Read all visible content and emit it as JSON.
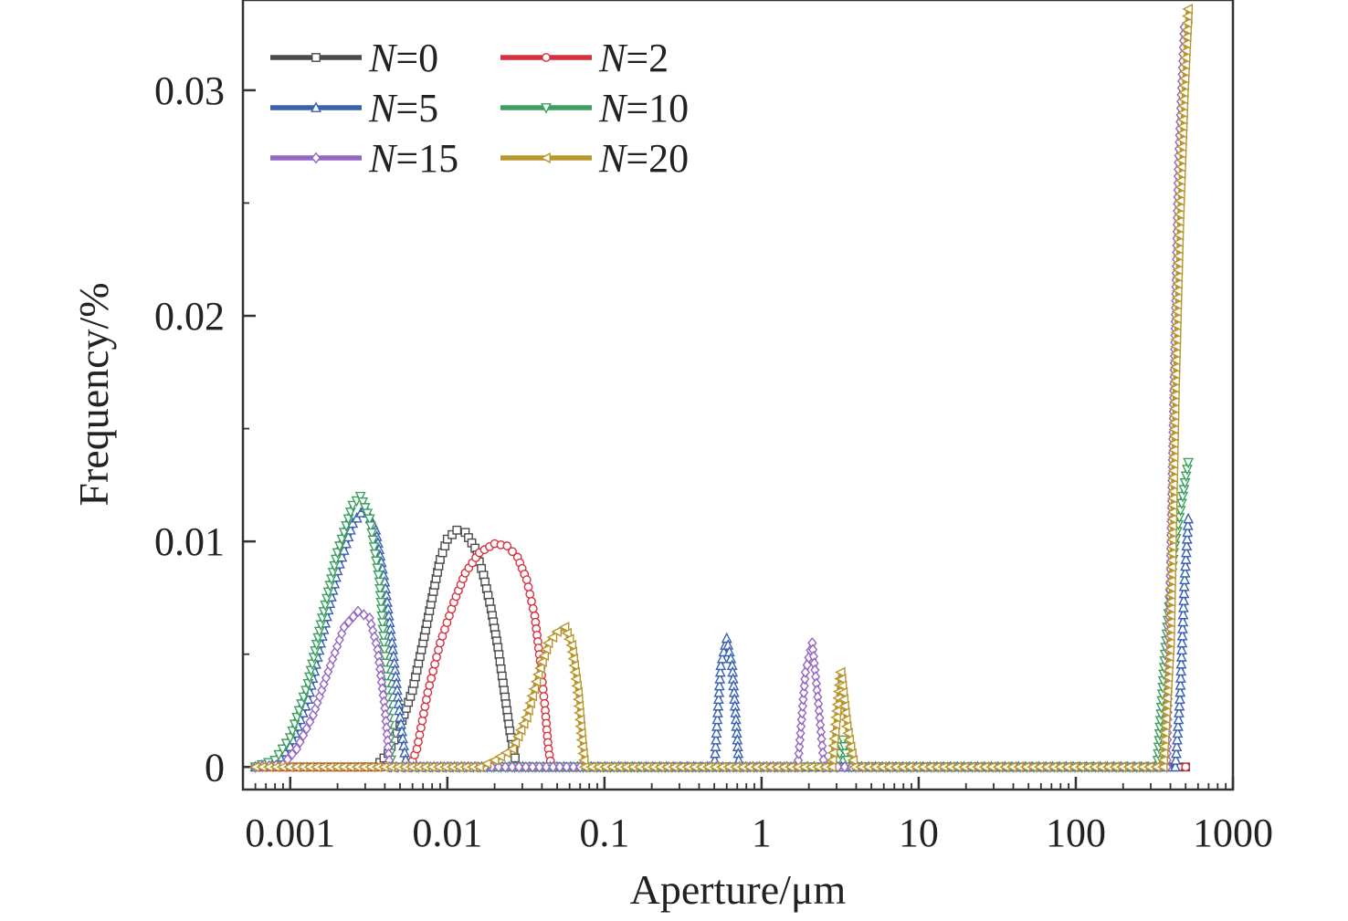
{
  "chart_data": {
    "type": "line",
    "title": "",
    "xlabel": "Aperture/μm",
    "ylabel": "Frequency/%",
    "xscale": "log",
    "xlim": [
      0.0005,
      1000
    ],
    "ylim": [
      -0.001,
      0.034
    ],
    "xticks": [
      0.001,
      0.01,
      0.1,
      1,
      10,
      100,
      1000
    ],
    "xtick_labels": [
      "0.001",
      "0.01",
      "0.1",
      "1",
      "10",
      "100",
      "1000"
    ],
    "yticks": [
      0,
      0.01,
      0.02,
      0.03
    ],
    "ytick_labels": [
      "0",
      "0.01",
      "0.02",
      "0.03"
    ],
    "legend_position": "top-left",
    "series": [
      {
        "name": "N=0",
        "var": "N",
        "value_label": "=0",
        "color": "#4a4a4a",
        "marker": "square",
        "points": [
          [
            0.0006,
            0
          ],
          [
            0.0035,
            0
          ],
          [
            0.0042,
            0.0006
          ],
          [
            0.005,
            0.0018
          ],
          [
            0.006,
            0.0034
          ],
          [
            0.007,
            0.0055
          ],
          [
            0.008,
            0.0075
          ],
          [
            0.009,
            0.0092
          ],
          [
            0.01,
            0.0101
          ],
          [
            0.0115,
            0.0105
          ],
          [
            0.013,
            0.0104
          ],
          [
            0.015,
            0.0097
          ],
          [
            0.017,
            0.0085
          ],
          [
            0.019,
            0.007
          ],
          [
            0.021,
            0.0053
          ],
          [
            0.023,
            0.0034
          ],
          [
            0.025,
            0.0016
          ],
          [
            0.027,
            0.0004
          ],
          [
            0.029,
            0
          ],
          [
            500,
            0
          ]
        ]
      },
      {
        "name": "N=2",
        "var": "N",
        "value_label": "=2",
        "color": "#d6303f",
        "marker": "circle",
        "points": [
          [
            0.0006,
            0
          ],
          [
            0.0058,
            0
          ],
          [
            0.0064,
            0.0008
          ],
          [
            0.0075,
            0.0033
          ],
          [
            0.009,
            0.0055
          ],
          [
            0.011,
            0.0073
          ],
          [
            0.013,
            0.0086
          ],
          [
            0.016,
            0.0095
          ],
          [
            0.02,
            0.0099
          ],
          [
            0.024,
            0.0098
          ],
          [
            0.028,
            0.0093
          ],
          [
            0.032,
            0.0083
          ],
          [
            0.036,
            0.0067
          ],
          [
            0.039,
            0.0047
          ],
          [
            0.042,
            0.0025
          ],
          [
            0.044,
            0.0008
          ],
          [
            0.046,
            0
          ],
          [
            500,
            0
          ]
        ]
      },
      {
        "name": "N=5",
        "var": "N",
        "value_label": "=5",
        "color": "#3a62b0",
        "marker": "triangle-up",
        "points": [
          [
            0.0006,
            0
          ],
          [
            0.0008,
            0.0002
          ],
          [
            0.001,
            0.0009
          ],
          [
            0.0013,
            0.003
          ],
          [
            0.0016,
            0.0058
          ],
          [
            0.002,
            0.0087
          ],
          [
            0.0025,
            0.0108
          ],
          [
            0.003,
            0.0115
          ],
          [
            0.0035,
            0.0105
          ],
          [
            0.004,
            0.0082
          ],
          [
            0.0045,
            0.0052
          ],
          [
            0.005,
            0.0022
          ],
          [
            0.0055,
            0
          ],
          [
            0.5,
            0
          ],
          [
            0.55,
            0.0045
          ],
          [
            0.6,
            0.0057
          ],
          [
            0.65,
            0.0045
          ],
          [
            0.72,
            0
          ],
          [
            430,
            0
          ],
          [
            460,
            0.003
          ],
          [
            490,
            0.008
          ],
          [
            520,
            0.011
          ]
        ]
      },
      {
        "name": "N=10",
        "var": "N",
        "value_label": "=10",
        "color": "#3da061",
        "marker": "triangle-down",
        "points": [
          [
            0.0006,
            0
          ],
          [
            0.0008,
            0.0003
          ],
          [
            0.001,
            0.0013
          ],
          [
            0.0013,
            0.0037
          ],
          [
            0.0016,
            0.0066
          ],
          [
            0.002,
            0.0095
          ],
          [
            0.0025,
            0.0116
          ],
          [
            0.0028,
            0.012
          ],
          [
            0.0032,
            0.011
          ],
          [
            0.0037,
            0.0082
          ],
          [
            0.0041,
            0.004
          ],
          [
            0.0044,
            0
          ],
          [
            3.0,
            0
          ],
          [
            3.3,
            0.0012
          ],
          [
            3.6,
            0
          ],
          [
            330,
            0
          ],
          [
            370,
            0.005
          ],
          [
            420,
            0.0095
          ],
          [
            480,
            0.012
          ],
          [
            520,
            0.0135
          ]
        ]
      },
      {
        "name": "N=15",
        "var": "N",
        "value_label": "=15",
        "color": "#9468c2",
        "marker": "diamond",
        "points": [
          [
            0.0006,
            0
          ],
          [
            0.0009,
            0.0001
          ],
          [
            0.0011,
            0.0008
          ],
          [
            0.0014,
            0.0023
          ],
          [
            0.0018,
            0.0045
          ],
          [
            0.0022,
            0.0062
          ],
          [
            0.0027,
            0.0069
          ],
          [
            0.0032,
            0.0066
          ],
          [
            0.0036,
            0.0052
          ],
          [
            0.004,
            0.0026
          ],
          [
            0.0043,
            0
          ],
          [
            1.7,
            0
          ],
          [
            1.9,
            0.0042
          ],
          [
            2.1,
            0.0055
          ],
          [
            2.3,
            0.0028
          ],
          [
            2.5,
            0
          ],
          [
            380,
            0
          ],
          [
            410,
            0.013
          ],
          [
            450,
            0.0268
          ],
          [
            490,
            0.0328
          ],
          [
            520,
            0.033
          ]
        ]
      },
      {
        "name": "N=20",
        "var": "N",
        "value_label": "=20",
        "color": "#b8962e",
        "marker": "triangle-left",
        "points": [
          [
            0.0006,
            0
          ],
          [
            0.016,
            0
          ],
          [
            0.02,
            0.0003
          ],
          [
            0.026,
            0.0008
          ],
          [
            0.032,
            0.0022
          ],
          [
            0.038,
            0.0041
          ],
          [
            0.044,
            0.0055
          ],
          [
            0.05,
            0.006
          ],
          [
            0.056,
            0.0062
          ],
          [
            0.062,
            0.0054
          ],
          [
            0.068,
            0.0033
          ],
          [
            0.072,
            0.0012
          ],
          [
            0.075,
            0
          ],
          [
            2.8,
            0
          ],
          [
            3.0,
            0.0022
          ],
          [
            3.2,
            0.0042
          ],
          [
            3.5,
            0.0018
          ],
          [
            3.9,
            0
          ],
          [
            360,
            0
          ],
          [
            400,
            0.0055
          ],
          [
            430,
            0.0168
          ],
          [
            460,
            0.0245
          ],
          [
            490,
            0.0299
          ],
          [
            520,
            0.0336
          ]
        ]
      }
    ]
  }
}
